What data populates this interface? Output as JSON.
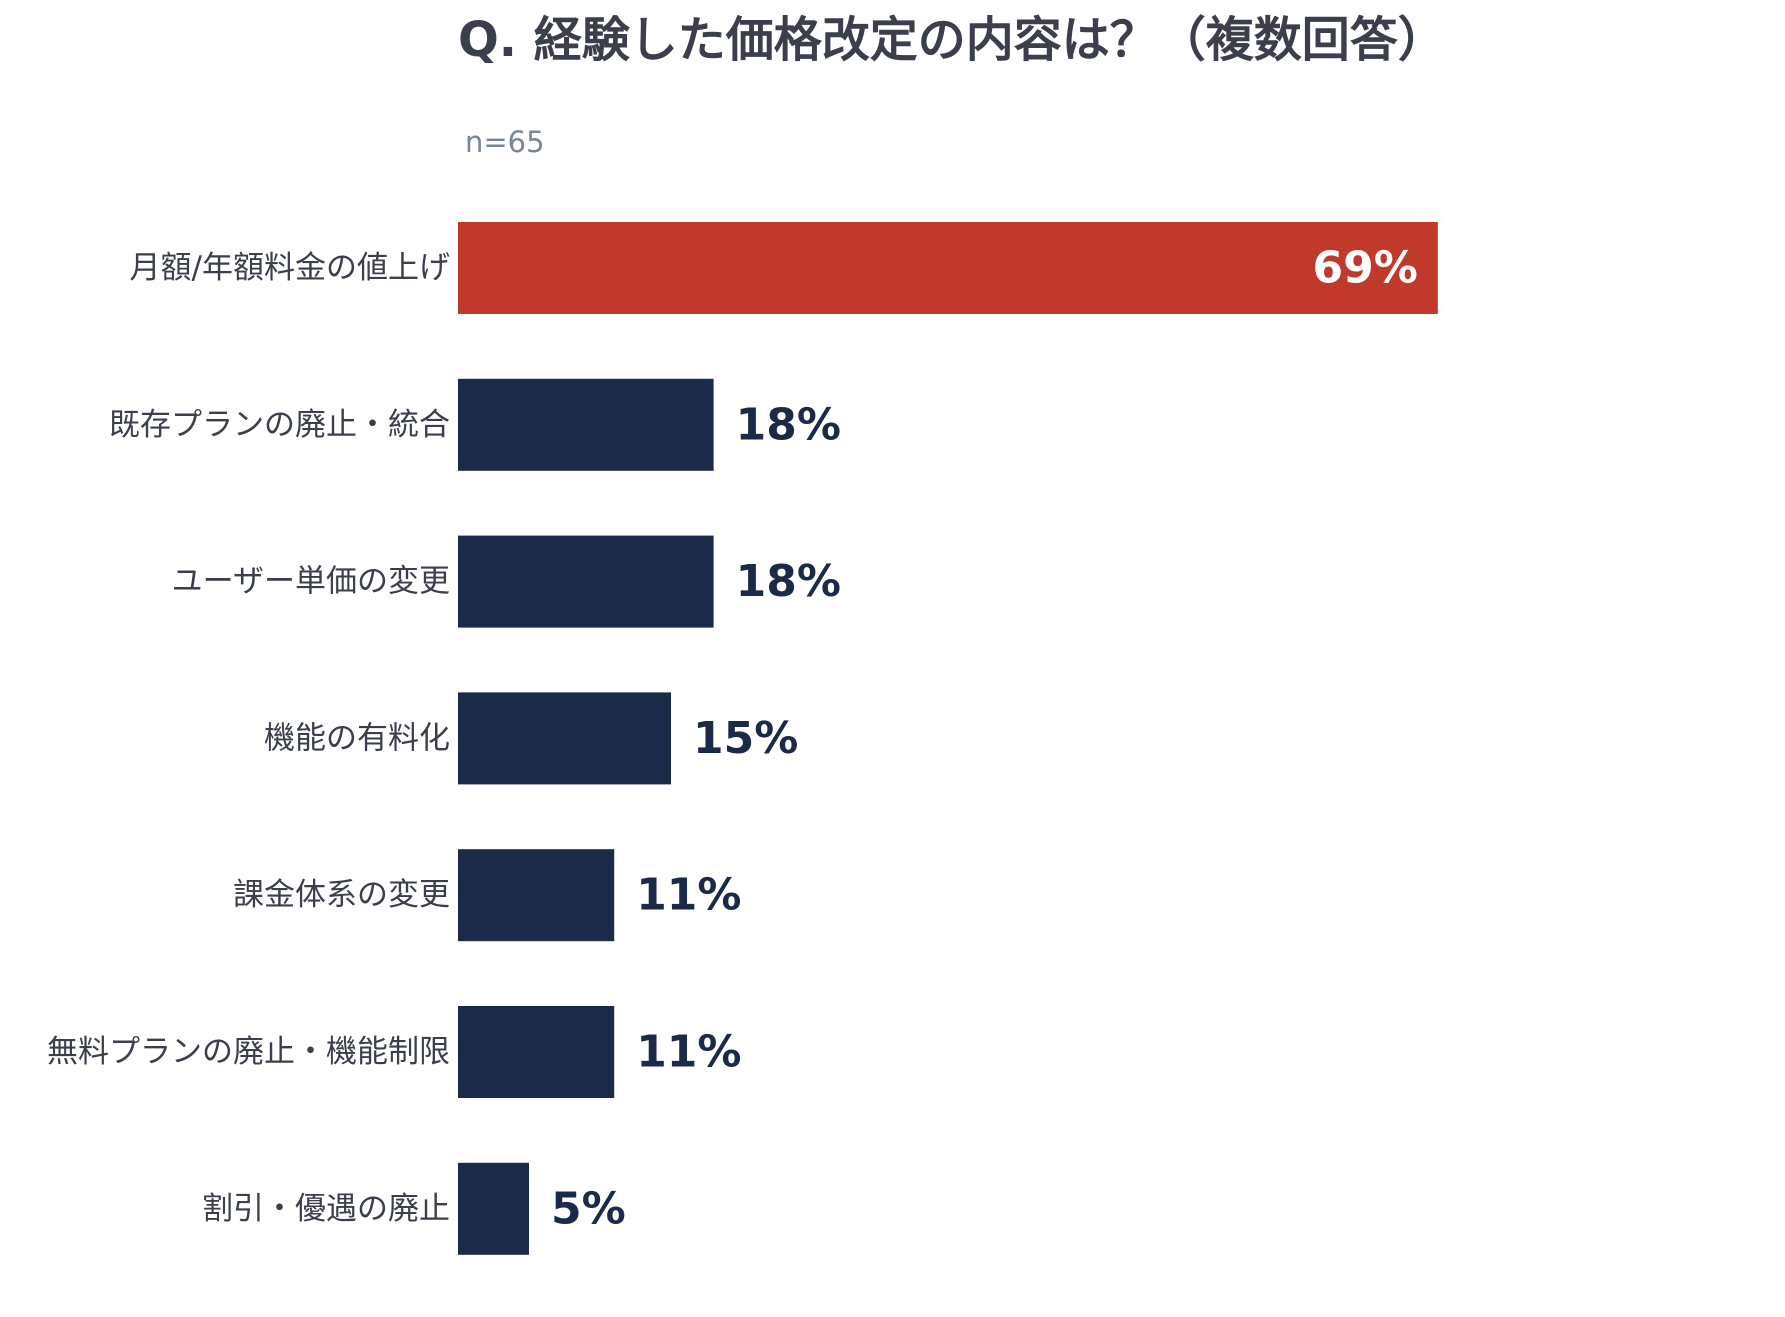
{
  "chart_data": {
    "type": "bar",
    "orientation": "horizontal",
    "title": "Q. 経験した価格改定の内容は？（複数回答）",
    "subtitle": "n=65",
    "categories": [
      "月額/年額料金の値上げ",
      "既存プランの廃止・統合",
      "ユーザー単価の変更",
      "機能の有料化",
      "課金体系の変更",
      "無料プランの廃止・機能制限",
      "割引・優遇の廃止"
    ],
    "values": [
      69,
      18,
      18,
      15,
      11,
      11,
      5
    ],
    "value_labels": [
      "69%",
      "18%",
      "18%",
      "15%",
      "11%",
      "11%",
      "5%"
    ],
    "unit": "%",
    "xlim": [
      0,
      100
    ],
    "grid": false,
    "legend": "none",
    "highlight_index": 0,
    "colors": {
      "highlight": "#c0392b",
      "default": "#1c2a4a",
      "highlight_label": "#ffffff",
      "default_label": "#1c2a4a"
    }
  }
}
